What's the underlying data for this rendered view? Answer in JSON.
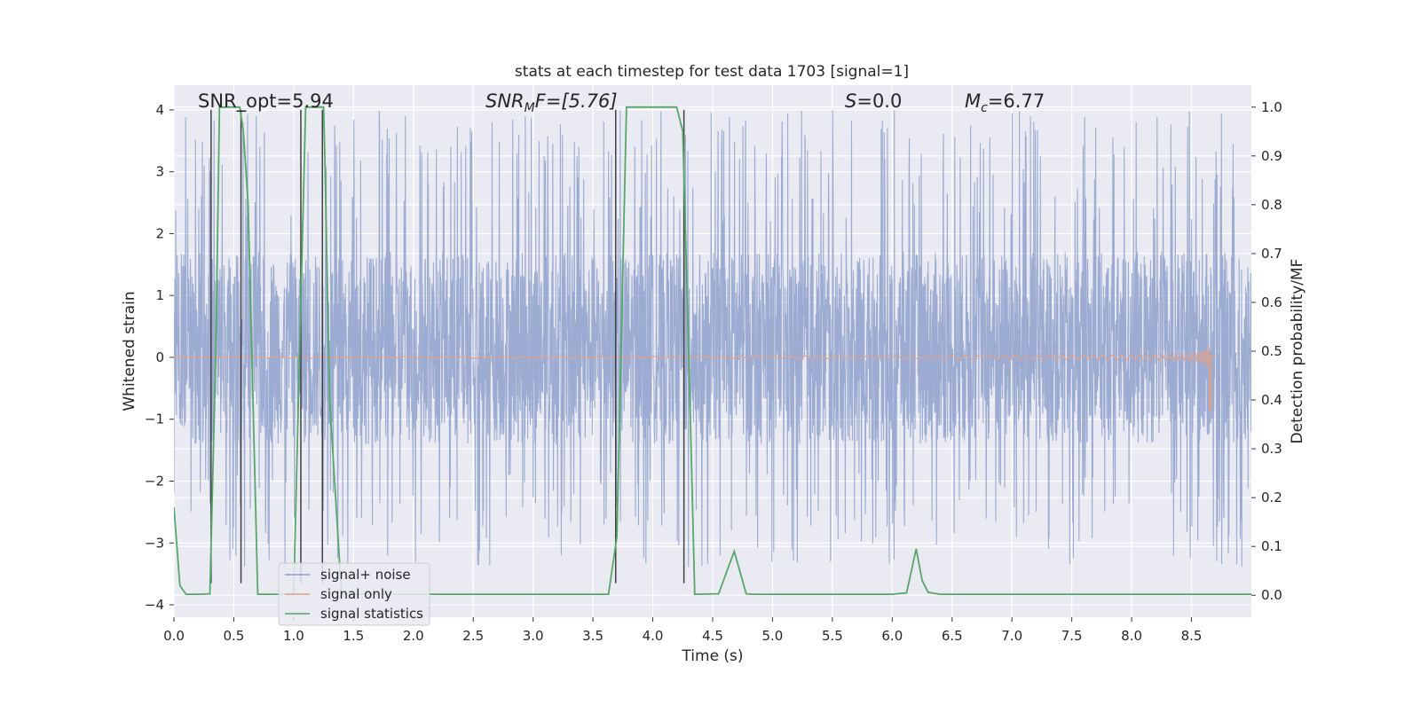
{
  "chart_data": {
    "type": "line",
    "title": "stats at each timestep for test data 1703 [signal=1]",
    "xlabel": "Time (s)",
    "ylabel": "Whitened strain",
    "y2label": "Detection probability/MF",
    "xlim": [
      0.0,
      9.0
    ],
    "ylim": [
      -4.2,
      4.4
    ],
    "y2lim": [
      -0.045,
      1.045
    ],
    "xticks": [
      0.0,
      0.5,
      1.0,
      1.5,
      2.0,
      2.5,
      3.0,
      3.5,
      4.0,
      4.5,
      5.0,
      5.5,
      6.0,
      6.5,
      7.0,
      7.5,
      8.0,
      8.5
    ],
    "xtick_labels": [
      "0.0",
      "0.5",
      "1.0",
      "1.5",
      "2.0",
      "2.5",
      "3.0",
      "3.5",
      "4.0",
      "4.5",
      "5.0",
      "5.5",
      "6.0",
      "6.5",
      "7.0",
      "7.5",
      "8.0",
      "8.5"
    ],
    "yticks": [
      -4,
      -3,
      -2,
      -1,
      0,
      1,
      2,
      3,
      4
    ],
    "ytick_labels": [
      "−4",
      "−3",
      "−2",
      "−1",
      "0",
      "1",
      "2",
      "3",
      "4"
    ],
    "y2ticks": [
      0.0,
      0.1,
      0.2,
      0.3,
      0.4,
      0.5,
      0.6,
      0.7,
      0.8,
      0.9,
      1.0
    ],
    "y2tick_labels": [
      "0.0",
      "0.1",
      "0.2",
      "0.3",
      "0.4",
      "0.5",
      "0.6",
      "0.7",
      "0.8",
      "0.9",
      "1.0"
    ],
    "grid": true,
    "legend_position": "lower-left",
    "annotations": [
      {
        "text": "SNR_opt=5.94"
      },
      {
        "text": "SNR",
        "sub": "M",
        "rest": "F=[5.76]"
      },
      {
        "text": "S",
        "rest": "=0.0"
      },
      {
        "text": "M",
        "sub": "c",
        "rest": "=6.77"
      }
    ],
    "series": [
      {
        "name": "signal+ noise",
        "color": "#8da0cb",
        "axis": "left",
        "kind": "noise",
        "x_range": [
          0.0,
          9.0
        ],
        "envelope": [
          -1.4,
          1.7
        ],
        "peak_range": [
          -3.4,
          4.0
        ]
      },
      {
        "name": "signal only",
        "color": "#e5a084",
        "axis": "left",
        "kind": "chirp",
        "x_range": [
          0.0,
          8.7
        ],
        "merger_time": 8.65,
        "peak_amplitude": [
          -0.85,
          0.62
        ]
      },
      {
        "name": "signal statistics",
        "color": "#55a868",
        "axis": "right",
        "kind": "line",
        "x": [
          0.0,
          0.05,
          0.1,
          0.2,
          0.3,
          0.35,
          0.38,
          0.5,
          0.55,
          0.58,
          0.62,
          0.65,
          0.7,
          0.75,
          1.0,
          1.05,
          1.1,
          1.15,
          1.25,
          1.26,
          1.3,
          1.4,
          1.45,
          1.5,
          1.8,
          2.5,
          3.0,
          3.5,
          3.63,
          3.7,
          3.78,
          4.0,
          4.2,
          4.25,
          4.3,
          4.35,
          4.55,
          4.68,
          4.78,
          4.85,
          5.0,
          5.5,
          6.0,
          6.12,
          6.2,
          6.25,
          6.3,
          6.4,
          7.0,
          8.0,
          9.0
        ],
        "values": [
          0.18,
          0.02,
          0.002,
          0.002,
          0.003,
          0.5,
          1.0,
          1.0,
          1.0,
          0.95,
          0.8,
          0.5,
          0.002,
          0.002,
          0.002,
          0.5,
          1.0,
          1.0,
          1.0,
          0.9,
          0.4,
          0.002,
          0.002,
          0.002,
          0.002,
          0.002,
          0.002,
          0.002,
          0.002,
          0.12,
          1.0,
          1.0,
          1.0,
          0.95,
          0.5,
          0.002,
          0.003,
          0.09,
          0.003,
          0.002,
          0.002,
          0.002,
          0.002,
          0.005,
          0.095,
          0.03,
          0.006,
          0.002,
          0.002,
          0.002,
          0.002
        ]
      }
    ],
    "markers": {
      "color": "#404040",
      "times": [
        0.31,
        0.56,
        1.06,
        1.24,
        3.69,
        4.26
      ]
    }
  }
}
